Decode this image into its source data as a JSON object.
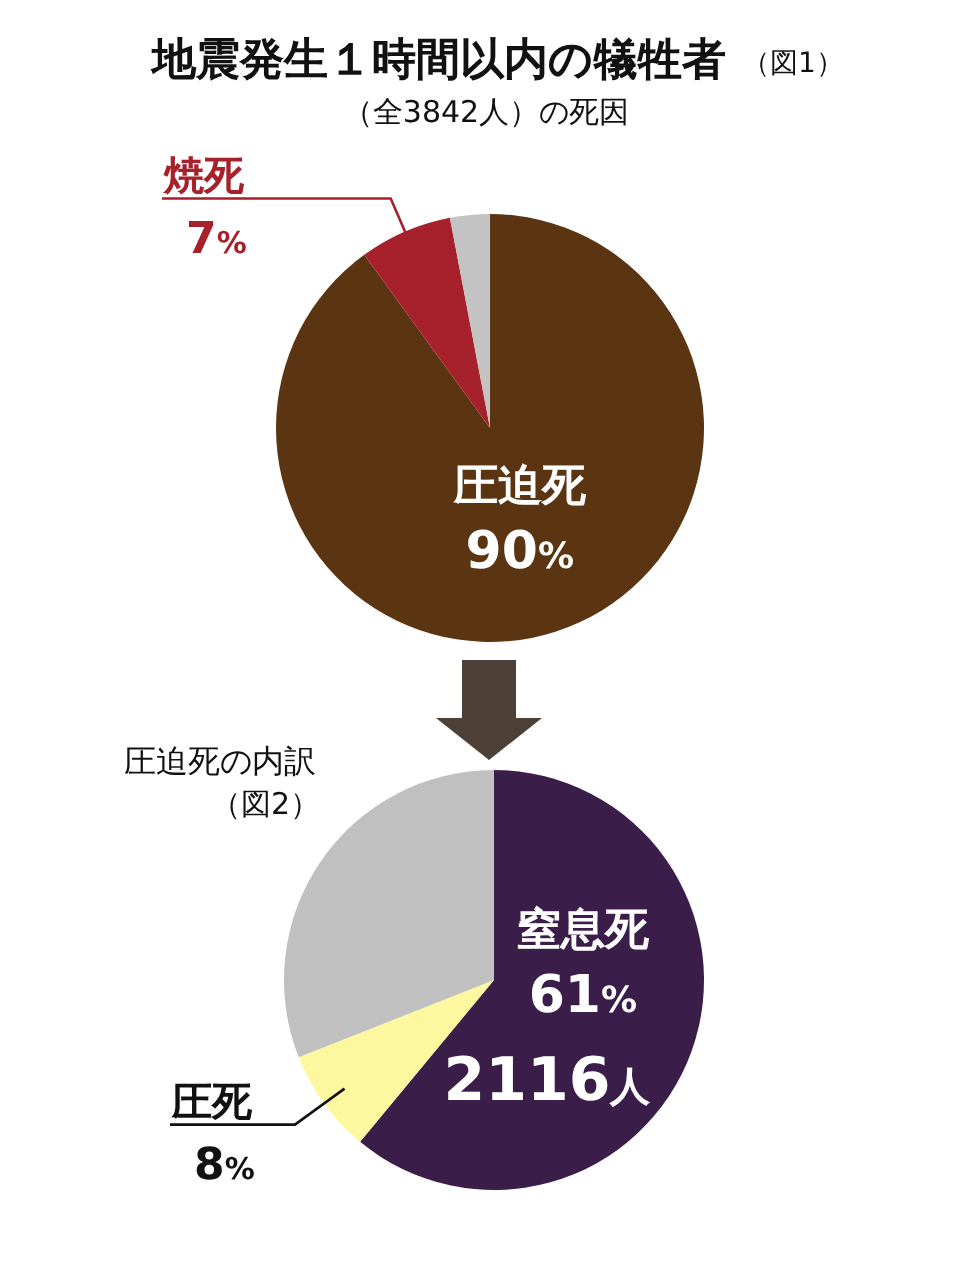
{
  "chart_data": [
    {
      "type": "pie",
      "title": "地震発生１時間以内の犠牲者",
      "subtitle": "（全3842人）の死因",
      "annotations": [
        "（図1）"
      ],
      "categories": [
        "圧迫死",
        "焼死",
        null
      ],
      "values": [
        90,
        7,
        3
      ],
      "colors": [
        "#5b3511",
        "#a6212b",
        "#c3c3c3"
      ],
      "value_labels": [
        "90%",
        "7%",
        null
      ]
    },
    {
      "type": "pie",
      "title": "圧迫死の内訳",
      "annotations": [
        "（図2）",
        "2116人"
      ],
      "categories": [
        "窒息死",
        "圧死",
        null
      ],
      "values": [
        61,
        8,
        31
      ],
      "colors": [
        "#3b1d4a",
        "#fdf7a0",
        "#c0c0c0"
      ],
      "value_labels": [
        "61%",
        "8%",
        null
      ]
    }
  ]
}
